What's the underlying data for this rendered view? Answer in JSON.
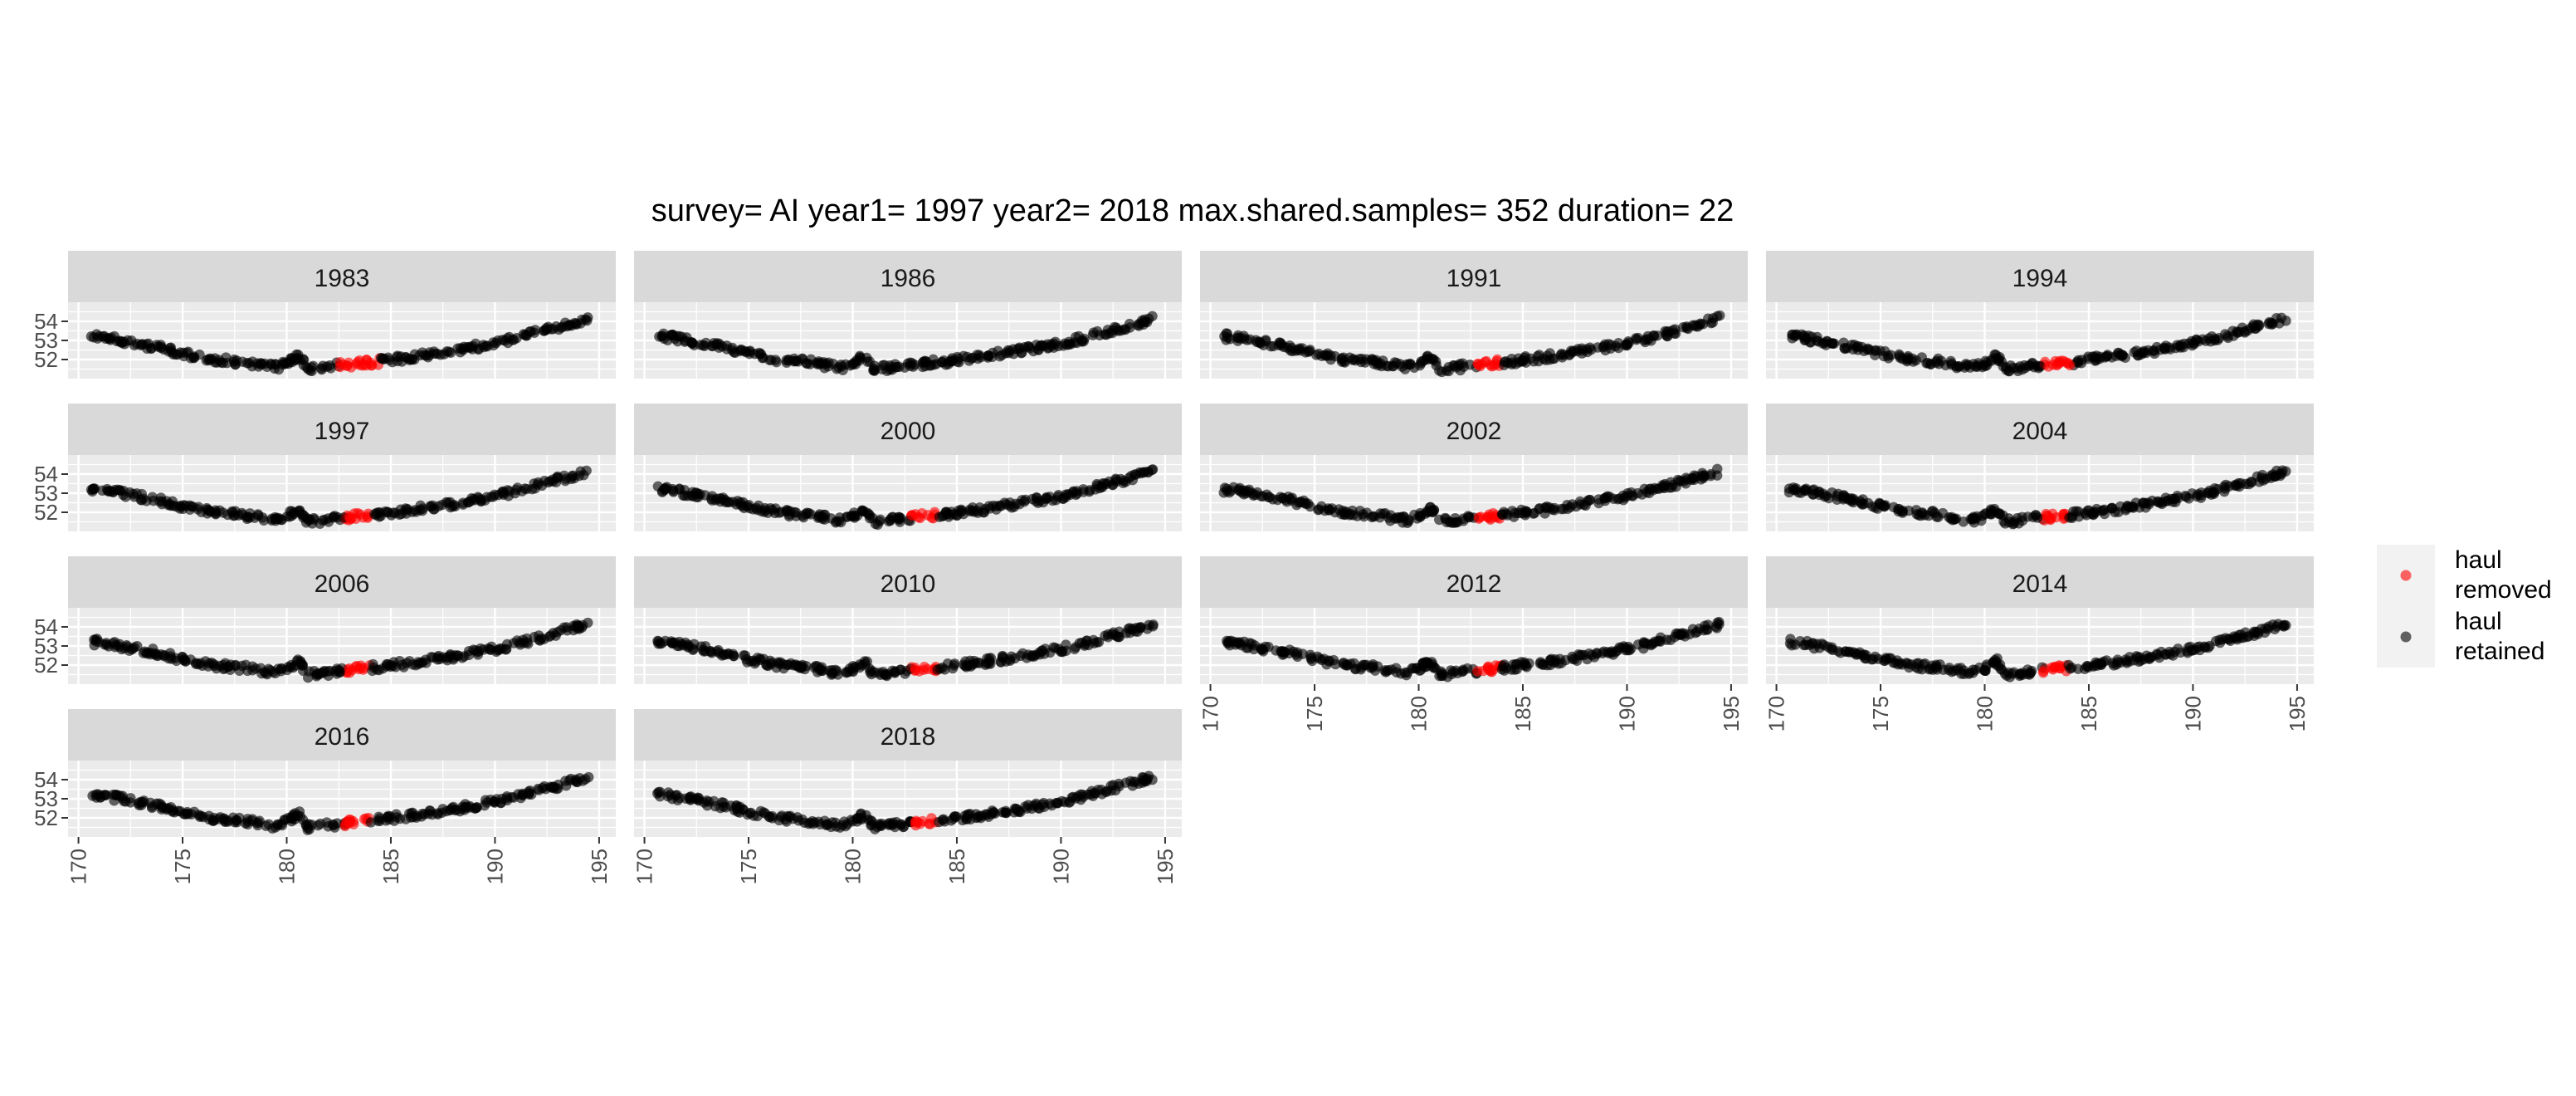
{
  "chart_data": {
    "type": "scatter",
    "title": "survey= AI year1= 1997 year2= 2018 max.shared.samples= 352 duration= 22",
    "xlabel": "",
    "ylabel": "",
    "xlim": [
      169.5,
      195.8
    ],
    "ylim": [
      51.0,
      55.0
    ],
    "x_ticks": [
      170,
      175,
      180,
      185,
      190,
      195
    ],
    "y_ticks": [
      52,
      53,
      54
    ],
    "grid": true,
    "facet_layout": "wrap 4 columns",
    "legend": {
      "placement": "right",
      "entries": [
        {
          "label_line1": "haul",
          "label_line2": "removed",
          "color": "#ff0000"
        },
        {
          "label_line1": "haul",
          "label_line2": "retained",
          "color": "#000000"
        }
      ]
    },
    "colors": {
      "removed": "#ff0000",
      "retained": "#000000",
      "panel_bg": "#ebebeb",
      "strip_bg": "#d9d9d9",
      "grid": "#ffffff"
    },
    "panels": [
      {
        "year": "1983",
        "removed_x": [
          182.5,
          184.5
        ]
      },
      {
        "year": "1986",
        "removed_x": null
      },
      {
        "year": "1991",
        "removed_x": [
          182.8,
          184.0
        ]
      },
      {
        "year": "1994",
        "removed_x": [
          182.8,
          184.2
        ]
      },
      {
        "year": "1997",
        "removed_x": [
          182.8,
          184.0
        ]
      },
      {
        "year": "2000",
        "removed_x": [
          182.8,
          184.0
        ]
      },
      {
        "year": "2002",
        "removed_x": [
          182.8,
          184.0
        ]
      },
      {
        "year": "2004",
        "removed_x": [
          182.8,
          184.0
        ]
      },
      {
        "year": "2006",
        "removed_x": [
          182.8,
          184.0
        ]
      },
      {
        "year": "2010",
        "removed_x": [
          182.8,
          184.0
        ]
      },
      {
        "year": "2012",
        "removed_x": [
          182.8,
          184.0
        ]
      },
      {
        "year": "2014",
        "removed_x": [
          182.8,
          184.0
        ]
      },
      {
        "year": "2016",
        "removed_x": [
          182.8,
          184.0
        ]
      },
      {
        "year": "2018",
        "removed_x": [
          182.8,
          184.0
        ]
      }
    ],
    "station_track": [
      [
        170.6,
        53.2
      ],
      [
        171.0,
        53.2
      ],
      [
        171.5,
        53.1
      ],
      [
        172.0,
        53.0
      ],
      [
        172.5,
        52.9
      ],
      [
        173.0,
        52.8
      ],
      [
        173.5,
        52.7
      ],
      [
        174.0,
        52.6
      ],
      [
        174.5,
        52.45
      ],
      [
        175.0,
        52.3
      ],
      [
        175.5,
        52.2
      ],
      [
        176.0,
        52.1
      ],
      [
        176.5,
        52.0
      ],
      [
        177.0,
        51.95
      ],
      [
        177.5,
        51.9
      ],
      [
        178.0,
        51.85
      ],
      [
        178.5,
        51.75
      ],
      [
        179.0,
        51.65
      ],
      [
        179.5,
        51.6
      ],
      [
        180.0,
        51.8
      ],
      [
        180.3,
        52.0
      ],
      [
        180.6,
        52.2
      ],
      [
        181.0,
        51.5
      ],
      [
        181.5,
        51.55
      ],
      [
        182.0,
        51.6
      ],
      [
        182.5,
        51.7
      ],
      [
        183.0,
        51.75
      ],
      [
        183.5,
        51.8
      ],
      [
        184.0,
        51.85
      ],
      [
        184.5,
        51.9
      ],
      [
        185.0,
        52.0
      ],
      [
        185.5,
        52.05
      ],
      [
        186.0,
        52.1
      ],
      [
        186.5,
        52.2
      ],
      [
        187.0,
        52.3
      ],
      [
        187.5,
        52.35
      ],
      [
        188.0,
        52.45
      ],
      [
        188.5,
        52.55
      ],
      [
        189.0,
        52.65
      ],
      [
        189.5,
        52.75
      ],
      [
        190.0,
        52.85
      ],
      [
        190.5,
        52.95
      ],
      [
        191.0,
        53.1
      ],
      [
        191.5,
        53.25
      ],
      [
        192.0,
        53.4
      ],
      [
        192.5,
        53.55
      ],
      [
        193.0,
        53.7
      ],
      [
        193.5,
        53.85
      ],
      [
        194.0,
        54.0
      ],
      [
        194.5,
        54.15
      ]
    ]
  }
}
